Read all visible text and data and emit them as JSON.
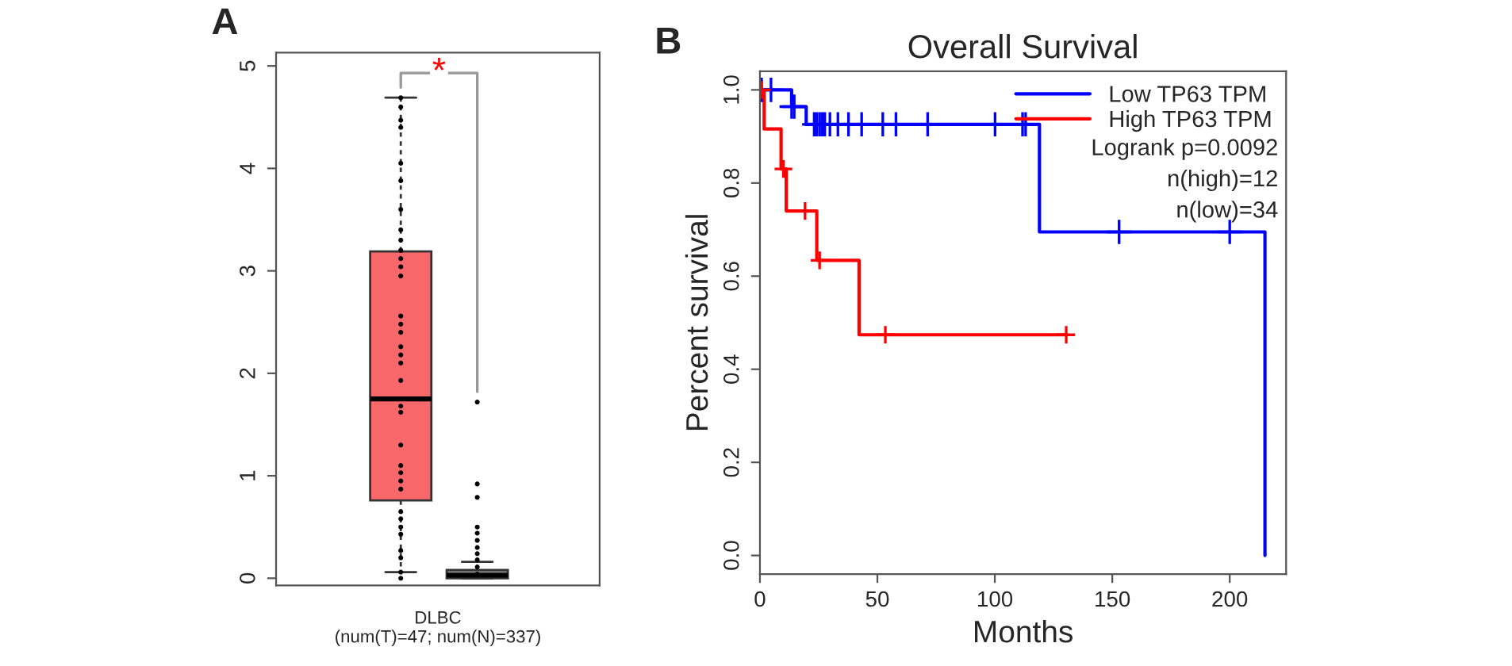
{
  "chart_data": [
    {
      "type": "box",
      "categories": [
        null,
        null
      ],
      "xlabel": "DLBC\n(num(T)=47; num(N)=337)",
      "ylim": [
        -0.07,
        5.13
      ],
      "yticks": [
        0,
        1,
        2,
        3,
        4,
        5
      ],
      "annotations": [
        "A",
        "*"
      ],
      "boxes": [
        {
          "low": 0.06,
          "q1": 0.76,
          "median": 1.75,
          "q3": 3.19,
          "high": 4.69,
          "outliers": [
            4.69,
            4.6,
            4.47,
            4.4,
            4.05,
            3.88,
            3.6,
            3.4,
            3.3,
            3.2,
            3.12,
            3.04,
            2.95,
            2.56,
            2.48,
            2.4,
            2.26,
            2.18,
            2.1,
            1.93,
            1.68,
            1.62,
            1.3,
            1.1,
            1.03,
            0.95,
            0.87,
            0.65,
            0.58,
            0.5,
            0.43,
            0.27,
            0.2,
            0.06,
            0
          ]
        },
        {
          "low": 0,
          "q1": 0,
          "median": 0.03,
          "q3": 0.08,
          "high": 0.16,
          "outliers": [
            1.72,
            0.92,
            0.79,
            0.5,
            0.44,
            0.37,
            0.3,
            0.24,
            0.18,
            0.11,
            0.04
          ]
        }
      ],
      "colors": [
        "#f8676a",
        "#808080"
      ]
    },
    {
      "type": "step",
      "title": "Overall Survival",
      "xlabel": "Months",
      "ylabel": "Percent survival",
      "xlim": [
        0,
        224
      ],
      "xticks": [
        0,
        50,
        100,
        150,
        200
      ],
      "ylim": [
        -0.04,
        1.04
      ],
      "yticks": [
        {
          "value": 0,
          "label": "0.0"
        },
        {
          "value": 0.2,
          "label": "0.2"
        },
        {
          "value": 0.4,
          "label": "0.4"
        },
        {
          "value": 0.6,
          "label": "0.6"
        },
        {
          "value": 0.8,
          "label": "0.8"
        },
        {
          "value": 1,
          "label": "1.0"
        }
      ],
      "legend": "top right",
      "annotations": [
        "B",
        "Logrank p=0.0092",
        "n(high)=12",
        "n(low)=34"
      ],
      "series": [
        {
          "type": "step",
          "name": "Low TP63 TPM",
          "color": "#0000ff",
          "x": [
            0,
            13.5,
            19.7,
            119,
            215
          ],
          "values": [
            1.0,
            0.964,
            0.926,
            0.695,
            0
          ]
        },
        {
          "type": "step",
          "name": "High TP63 TPM",
          "color": "#ff0000",
          "x": [
            0,
            1.8,
            9.0,
            11.2,
            24.2,
            42.2,
            130.4
          ],
          "values": [
            1.0,
            0.916,
            0.83,
            0.74,
            0.634,
            0.474,
            0.474
          ]
        },
        {
          "type": "scatter",
          "marker": "cross",
          "color": "#0000ff",
          "x": [
            0.7,
            4.7,
            13.5,
            14.6,
            23.1,
            24.2,
            25.4,
            26.5,
            27.6,
            29.8,
            33.2,
            37.7,
            43.3,
            52.3,
            57.9,
            71.4,
            100.1,
            111.8,
            113.1,
            152.9,
            200
          ],
          "values": [
            1.0,
            1.0,
            0.964,
            0.964,
            0.926,
            0.926,
            0.926,
            0.926,
            0.926,
            0.926,
            0.926,
            0.926,
            0.926,
            0.926,
            0.926,
            0.926,
            0.926,
            0.926,
            0.926,
            0.695,
            0.695
          ]
        },
        {
          "type": "scatter",
          "marker": "cross",
          "color": "#ff0000",
          "x": [
            0.7,
            10.0,
            19.2,
            25.4,
            53.4,
            130.4
          ],
          "values": [
            1.0,
            0.83,
            0.74,
            0.634,
            0.474,
            0.474
          ]
        }
      ]
    }
  ]
}
